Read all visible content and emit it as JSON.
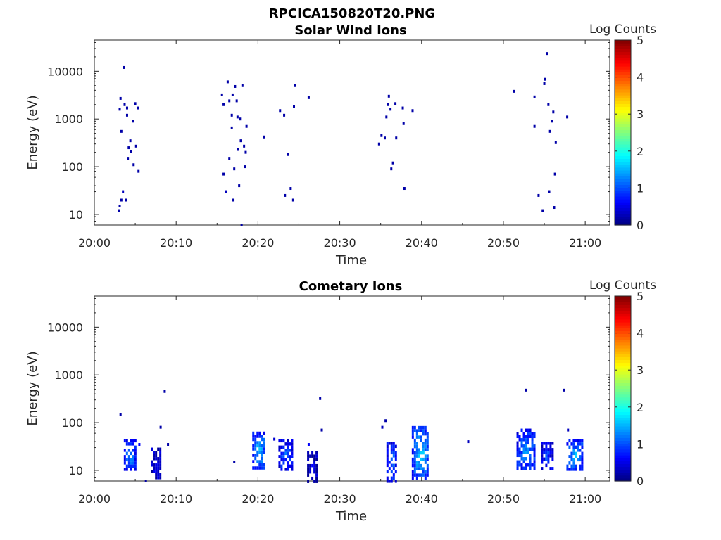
{
  "figure": {
    "title": "RPCICA150820T20.PNG"
  },
  "chart_data": [
    {
      "type": "heatmap",
      "title": "Solar Wind Ions",
      "xlabel": "Time",
      "ylabel": "Energy (eV)",
      "x_ticks": [
        "20:00",
        "20:10",
        "20:20",
        "20:30",
        "20:40",
        "20:50",
        "21:00"
      ],
      "y_ticks": [
        "10",
        "100",
        "1000",
        "10000"
      ],
      "yscale": "log",
      "xlim_minutes": [
        0,
        63
      ],
      "ylim": [
        6,
        45000
      ],
      "colorbar": {
        "label": "Log Counts",
        "ticks": [
          "0",
          "1",
          "2",
          "3",
          "4",
          "5"
        ],
        "range": [
          0,
          5
        ],
        "colormap": "jet"
      },
      "points": [
        [
          3.0,
          12,
          0.2
        ],
        [
          3.1,
          15,
          0.2
        ],
        [
          3.3,
          20,
          0.2
        ],
        [
          3.5,
          30,
          0.3
        ],
        [
          3.9,
          20,
          0.2
        ],
        [
          3.1,
          1600,
          0.2
        ],
        [
          3.2,
          2700,
          0.2
        ],
        [
          3.3,
          550,
          0.2
        ],
        [
          3.6,
          12000,
          0.2
        ],
        [
          3.7,
          2000,
          0.2
        ],
        [
          4.0,
          1700,
          0.2
        ],
        [
          4.0,
          1200,
          0.2
        ],
        [
          4.1,
          150,
          0.2
        ],
        [
          4.2,
          250,
          0.2
        ],
        [
          4.4,
          350,
          0.2
        ],
        [
          4.5,
          210,
          0.2
        ],
        [
          4.7,
          900,
          0.2
        ],
        [
          4.8,
          110,
          0.2
        ],
        [
          5.0,
          2100,
          0.2
        ],
        [
          5.1,
          270,
          0.2
        ],
        [
          5.3,
          1700,
          0.2
        ],
        [
          5.4,
          80,
          0.2
        ],
        [
          15.6,
          3200,
          0.2
        ],
        [
          15.8,
          2000,
          0.2
        ],
        [
          15.8,
          70,
          0.2
        ],
        [
          16.1,
          30,
          0.3
        ],
        [
          16.3,
          6000,
          0.2
        ],
        [
          16.5,
          2400,
          0.2
        ],
        [
          16.5,
          150,
          0.2
        ],
        [
          16.8,
          1200,
          0.2
        ],
        [
          16.8,
          650,
          0.2
        ],
        [
          16.9,
          3200,
          0.2
        ],
        [
          17.0,
          20,
          0.2
        ],
        [
          17.1,
          90,
          0.2
        ],
        [
          17.2,
          4800,
          0.2
        ],
        [
          17.4,
          2400,
          0.2
        ],
        [
          17.5,
          1100,
          0.2
        ],
        [
          17.6,
          230,
          0.2
        ],
        [
          17.7,
          40,
          0.2
        ],
        [
          17.8,
          1000,
          0.2
        ],
        [
          17.9,
          350,
          0.2
        ],
        [
          18.0,
          6,
          0.2
        ],
        [
          18.1,
          5000,
          0.2
        ],
        [
          18.3,
          270,
          0.2
        ],
        [
          18.4,
          100,
          0.2
        ],
        [
          18.5,
          200,
          0.2
        ],
        [
          18.6,
          700,
          0.2
        ],
        [
          20.7,
          420,
          0.2
        ],
        [
          22.7,
          1500,
          0.2
        ],
        [
          23.2,
          1200,
          0.2
        ],
        [
          23.3,
          25,
          0.2
        ],
        [
          23.7,
          180,
          0.2
        ],
        [
          24.0,
          35,
          0.2
        ],
        [
          24.3,
          20,
          0.2
        ],
        [
          24.4,
          1800,
          0.2
        ],
        [
          24.5,
          5000,
          0.2
        ],
        [
          26.2,
          2800,
          0.2
        ],
        [
          34.8,
          300,
          0.2
        ],
        [
          35.1,
          450,
          0.2
        ],
        [
          35.5,
          400,
          0.2
        ],
        [
          35.7,
          1100,
          0.2
        ],
        [
          35.9,
          2000,
          0.2
        ],
        [
          36.0,
          3000,
          0.2
        ],
        [
          36.2,
          1600,
          0.2
        ],
        [
          36.3,
          90,
          0.2
        ],
        [
          36.5,
          120,
          0.2
        ],
        [
          36.8,
          2100,
          0.2
        ],
        [
          36.9,
          400,
          0.2
        ],
        [
          37.7,
          1700,
          0.2
        ],
        [
          37.8,
          800,
          0.2
        ],
        [
          37.9,
          35,
          0.2
        ],
        [
          38.9,
          1500,
          0.2
        ],
        [
          51.3,
          3800,
          0.2
        ],
        [
          53.8,
          2900,
          0.2
        ],
        [
          53.8,
          700,
          0.2
        ],
        [
          54.3,
          25,
          0.2
        ],
        [
          54.8,
          12,
          0.2
        ],
        [
          55.0,
          5500,
          0.2
        ],
        [
          55.1,
          6800,
          0.2
        ],
        [
          55.3,
          23500,
          0.2
        ],
        [
          55.5,
          2000,
          0.2
        ],
        [
          55.6,
          30,
          0.2
        ],
        [
          55.7,
          550,
          0.2
        ],
        [
          55.9,
          900,
          0.2
        ],
        [
          56.1,
          1400,
          0.2
        ],
        [
          56.2,
          14,
          0.2
        ],
        [
          56.3,
          70,
          0.2
        ],
        [
          56.4,
          320,
          0.2
        ],
        [
          57.8,
          1100,
          0.2
        ]
      ]
    },
    {
      "type": "heatmap",
      "title": "Cometary Ions",
      "xlabel": "Time",
      "ylabel": "Energy (eV)",
      "x_ticks": [
        "20:00",
        "20:10",
        "20:20",
        "20:30",
        "20:40",
        "20:50",
        "21:00"
      ],
      "y_ticks": [
        "10",
        "100",
        "1000",
        "10000"
      ],
      "yscale": "log",
      "xlim_minutes": [
        0,
        63
      ],
      "ylim": [
        6,
        45000
      ],
      "colorbar": {
        "label": "Log Counts",
        "ticks": [
          "0",
          "1",
          "2",
          "3",
          "4",
          "5"
        ],
        "range": [
          0,
          5
        ],
        "colormap": "jet"
      },
      "points": [
        [
          3.2,
          150,
          0.2
        ],
        [
          6.3,
          6,
          0.2
        ],
        [
          8.1,
          80,
          0.2
        ],
        [
          8.6,
          450,
          0.2
        ],
        [
          9.0,
          35,
          0.2
        ],
        [
          17.1,
          15,
          0.2
        ],
        [
          27.6,
          320,
          0.2
        ],
        [
          27.8,
          70,
          0.2
        ],
        [
          35.2,
          80,
          0.3
        ],
        [
          35.6,
          110,
          0.2
        ],
        [
          52.8,
          480,
          0.2
        ],
        [
          57.4,
          480,
          0.2
        ],
        [
          57.9,
          70,
          0.3
        ],
        [
          5.5,
          35,
          0.6
        ],
        [
          45.7,
          40,
          0.3
        ],
        [
          26.2,
          35,
          0.6
        ],
        [
          22.0,
          45,
          0.4
        ]
      ],
      "clusters": [
        {
          "x0": 3.6,
          "x1": 5.0,
          "e_lo": 11,
          "e_hi": 45,
          "level": 1.4
        },
        {
          "x0": 6.9,
          "x1": 8.0,
          "e_lo": 7,
          "e_hi": 30,
          "level": 0.6
        },
        {
          "x0": 19.3,
          "x1": 20.8,
          "e_lo": 11,
          "e_hi": 65,
          "level": 1.6
        },
        {
          "x0": 22.5,
          "x1": 24.2,
          "e_lo": 11,
          "e_hi": 45,
          "level": 1.1
        },
        {
          "x0": 26.0,
          "x1": 27.2,
          "e_lo": 6,
          "e_hi": 25,
          "level": 0.4
        },
        {
          "x0": 35.7,
          "x1": 36.8,
          "e_lo": 6,
          "e_hi": 40,
          "level": 1.2
        },
        {
          "x0": 38.8,
          "x1": 40.8,
          "e_lo": 7,
          "e_hi": 85,
          "level": 1.7
        },
        {
          "x0": 51.6,
          "x1": 53.9,
          "e_lo": 11,
          "e_hi": 75,
          "level": 1.4
        },
        {
          "x0": 54.6,
          "x1": 55.9,
          "e_lo": 11,
          "e_hi": 40,
          "level": 1.0
        },
        {
          "x0": 57.7,
          "x1": 59.6,
          "e_lo": 11,
          "e_hi": 45,
          "level": 1.6
        }
      ]
    }
  ]
}
